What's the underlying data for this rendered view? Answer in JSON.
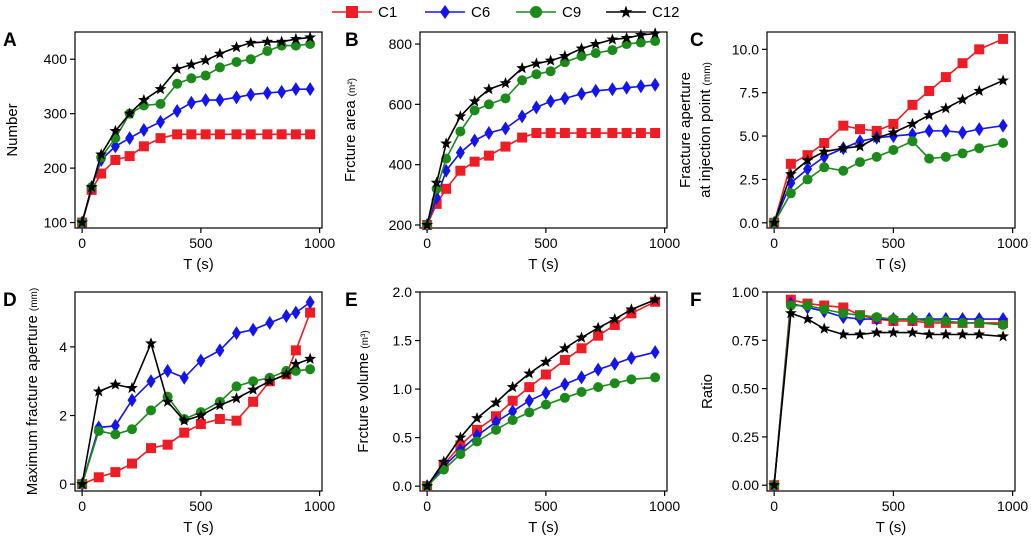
{
  "legend": [
    {
      "name": "C1",
      "color": "#ee1c24",
      "marker": "square"
    },
    {
      "name": "C6",
      "color": "#1414ee",
      "marker": "diamond"
    },
    {
      "name": "C9",
      "color": "#1b8a1b",
      "marker": "circle"
    },
    {
      "name": "C12",
      "color": "#000000",
      "marker": "star"
    }
  ],
  "chart_data": [
    {
      "panel": "A",
      "type": "line",
      "xlabel": "T (s)",
      "ylabel": "Number",
      "xlim": [
        -30,
        1010
      ],
      "ylim": [
        90,
        450
      ],
      "xticks": [
        0,
        500,
        1000
      ],
      "yticks": [
        100,
        200,
        300,
        400
      ],
      "series": [
        {
          "name": "C1",
          "x": [
            0,
            40,
            80,
            140,
            200,
            260,
            330,
            400,
            460,
            520,
            580,
            650,
            710,
            780,
            840,
            900,
            960
          ],
          "values": [
            100,
            160,
            190,
            215,
            222,
            240,
            255,
            262,
            262,
            262,
            262,
            262,
            262,
            262,
            262,
            262,
            262
          ]
        },
        {
          "name": "C6",
          "x": [
            0,
            40,
            80,
            140,
            200,
            260,
            330,
            400,
            460,
            520,
            580,
            650,
            710,
            780,
            840,
            900,
            960
          ],
          "values": [
            100,
            165,
            215,
            240,
            255,
            270,
            285,
            305,
            320,
            325,
            325,
            330,
            335,
            338,
            340,
            345,
            345
          ]
        },
        {
          "name": "C9",
          "x": [
            0,
            40,
            80,
            140,
            200,
            260,
            330,
            400,
            460,
            520,
            580,
            650,
            710,
            780,
            840,
            900,
            960
          ],
          "values": [
            100,
            165,
            220,
            255,
            300,
            315,
            318,
            355,
            365,
            370,
            385,
            395,
            400,
            415,
            425,
            425,
            428
          ]
        },
        {
          "name": "C12",
          "x": [
            0,
            40,
            80,
            140,
            200,
            260,
            330,
            400,
            460,
            520,
            580,
            650,
            710,
            780,
            840,
            900,
            960
          ],
          "values": [
            100,
            165,
            225,
            268,
            300,
            325,
            345,
            382,
            390,
            398,
            410,
            422,
            430,
            432,
            432,
            437,
            440
          ]
        }
      ]
    },
    {
      "panel": "B",
      "type": "line",
      "xlabel": "T (s)",
      "ylabel": "Frcture area",
      "ylabel_unit": "(m²)",
      "xlim": [
        -30,
        1010
      ],
      "ylim": [
        190,
        840
      ],
      "xticks": [
        0,
        500,
        1000
      ],
      "yticks": [
        200,
        400,
        600,
        800
      ],
      "series": [
        {
          "name": "C1",
          "x": [
            0,
            40,
            80,
            140,
            200,
            260,
            330,
            400,
            460,
            520,
            580,
            650,
            710,
            780,
            840,
            900,
            960
          ],
          "values": [
            200,
            270,
            320,
            380,
            410,
            430,
            460,
            490,
            505,
            505,
            505,
            505,
            505,
            505,
            505,
            505,
            505
          ]
        },
        {
          "name": "C6",
          "x": [
            0,
            40,
            80,
            140,
            200,
            260,
            330,
            400,
            460,
            520,
            580,
            650,
            710,
            780,
            840,
            900,
            960
          ],
          "values": [
            200,
            290,
            380,
            440,
            480,
            505,
            520,
            560,
            590,
            610,
            620,
            635,
            645,
            650,
            655,
            660,
            665
          ]
        },
        {
          "name": "C9",
          "x": [
            0,
            40,
            80,
            140,
            200,
            260,
            330,
            400,
            460,
            520,
            580,
            650,
            710,
            780,
            840,
            900,
            960
          ],
          "values": [
            200,
            320,
            420,
            510,
            580,
            600,
            620,
            680,
            700,
            710,
            740,
            760,
            770,
            780,
            800,
            805,
            810
          ]
        },
        {
          "name": "C12",
          "x": [
            0,
            40,
            80,
            140,
            200,
            260,
            330,
            400,
            460,
            520,
            580,
            650,
            710,
            780,
            840,
            900,
            960
          ],
          "values": [
            200,
            340,
            470,
            560,
            610,
            650,
            670,
            720,
            735,
            745,
            760,
            785,
            800,
            815,
            820,
            830,
            835
          ]
        }
      ]
    },
    {
      "panel": "C",
      "type": "line",
      "xlabel": "T (s)",
      "ylabel": "Fracture aperture",
      "ylabel2": "at injection point",
      "ylabel_unit": "(mm)",
      "xlim": [
        -30,
        1010
      ],
      "ylim": [
        -0.3,
        11
      ],
      "xticks": [
        0,
        500,
        1000
      ],
      "yticks": [
        0.0,
        2.5,
        5.0,
        7.5,
        10.0
      ],
      "ytick_labels": [
        "0.0",
        "2.5",
        "5.0",
        "7.5",
        "10.0"
      ],
      "series": [
        {
          "name": "C1",
          "x": [
            0,
            70,
            140,
            210,
            290,
            360,
            430,
            500,
            580,
            650,
            720,
            790,
            860,
            960
          ],
          "values": [
            0,
            3.4,
            3.9,
            4.6,
            5.6,
            5.4,
            5.3,
            5.7,
            6.8,
            7.6,
            8.4,
            9.2,
            10.0,
            10.6
          ]
        },
        {
          "name": "C6",
          "x": [
            0,
            70,
            140,
            210,
            290,
            360,
            430,
            500,
            580,
            650,
            720,
            790,
            860,
            960
          ],
          "values": [
            0,
            2.3,
            3.1,
            3.8,
            4.3,
            4.7,
            4.9,
            5.0,
            5.1,
            5.3,
            5.3,
            5.2,
            5.4,
            5.6
          ]
        },
        {
          "name": "C9",
          "x": [
            0,
            70,
            140,
            210,
            290,
            360,
            430,
            500,
            580,
            650,
            720,
            790,
            860,
            960
          ],
          "values": [
            0,
            1.7,
            2.5,
            3.2,
            3.0,
            3.5,
            3.8,
            4.2,
            4.7,
            3.7,
            3.8,
            4.0,
            4.3,
            4.6
          ]
        },
        {
          "name": "C12",
          "x": [
            0,
            70,
            140,
            210,
            290,
            360,
            430,
            500,
            580,
            650,
            720,
            790,
            860,
            960
          ],
          "values": [
            0,
            2.8,
            3.6,
            4.1,
            4.3,
            4.4,
            4.9,
            5.2,
            5.7,
            6.2,
            6.6,
            7.1,
            7.6,
            8.2
          ]
        }
      ]
    },
    {
      "panel": "D",
      "type": "line",
      "xlabel": "T (s)",
      "ylabel": "Maximum fracture aperture",
      "ylabel_unit": "(mm)",
      "xlim": [
        -30,
        1010
      ],
      "ylim": [
        -0.2,
        5.6
      ],
      "xticks": [
        0,
        500,
        1000
      ],
      "yticks": [
        0,
        2,
        4
      ],
      "series": [
        {
          "name": "C1",
          "x": [
            0,
            70,
            140,
            210,
            290,
            360,
            430,
            500,
            580,
            650,
            720,
            790,
            860,
            900,
            960
          ],
          "values": [
            0,
            0.2,
            0.35,
            0.6,
            1.05,
            1.15,
            1.5,
            1.75,
            1.9,
            1.85,
            2.4,
            3.0,
            3.2,
            3.9,
            5.0
          ]
        },
        {
          "name": "C6",
          "x": [
            0,
            70,
            140,
            210,
            290,
            360,
            430,
            500,
            580,
            650,
            720,
            790,
            860,
            900,
            960
          ],
          "values": [
            0,
            1.65,
            1.7,
            2.45,
            3.0,
            3.3,
            3.1,
            3.6,
            3.9,
            4.4,
            4.5,
            4.7,
            4.9,
            5.0,
            5.3
          ]
        },
        {
          "name": "C9",
          "x": [
            0,
            70,
            140,
            210,
            290,
            360,
            430,
            500,
            580,
            650,
            720,
            790,
            860,
            900,
            960
          ],
          "values": [
            0,
            1.55,
            1.45,
            1.6,
            2.15,
            2.55,
            1.9,
            2.1,
            2.4,
            2.85,
            3.0,
            3.1,
            3.3,
            3.3,
            3.35
          ]
        },
        {
          "name": "C12",
          "x": [
            0,
            70,
            140,
            210,
            290,
            360,
            430,
            500,
            580,
            650,
            720,
            790,
            860,
            900,
            960
          ],
          "values": [
            0,
            2.7,
            2.9,
            2.8,
            4.1,
            2.4,
            1.85,
            2.0,
            2.3,
            2.5,
            2.75,
            3.0,
            3.2,
            3.5,
            3.65
          ]
        }
      ]
    },
    {
      "panel": "E",
      "type": "line",
      "xlabel": "T (s)",
      "ylabel": "Frcture volume",
      "ylabel_unit": "(m³)",
      "xlim": [
        -30,
        1010
      ],
      "ylim": [
        -0.05,
        2.0
      ],
      "xticks": [
        0,
        500,
        1000
      ],
      "yticks": [
        0.0,
        0.5,
        1.0,
        1.5,
        2.0
      ],
      "ytick_labels": [
        "0.0",
        "0.5",
        "1.0",
        "1.5",
        "2.0"
      ],
      "series": [
        {
          "name": "C1",
          "x": [
            0,
            70,
            140,
            210,
            290,
            360,
            430,
            500,
            580,
            650,
            720,
            790,
            860,
            960
          ],
          "values": [
            0,
            0.22,
            0.42,
            0.58,
            0.72,
            0.88,
            1.02,
            1.15,
            1.3,
            1.42,
            1.55,
            1.66,
            1.78,
            1.9
          ]
        },
        {
          "name": "C6",
          "x": [
            0,
            70,
            140,
            210,
            290,
            360,
            430,
            500,
            580,
            650,
            720,
            790,
            860,
            960
          ],
          "values": [
            0,
            0.2,
            0.37,
            0.52,
            0.66,
            0.77,
            0.88,
            0.96,
            1.05,
            1.12,
            1.2,
            1.26,
            1.32,
            1.38
          ]
        },
        {
          "name": "C9",
          "x": [
            0,
            70,
            140,
            210,
            290,
            360,
            430,
            500,
            580,
            650,
            720,
            790,
            860,
            960
          ],
          "values": [
            0,
            0.17,
            0.33,
            0.46,
            0.58,
            0.68,
            0.76,
            0.84,
            0.91,
            0.97,
            1.02,
            1.06,
            1.1,
            1.12
          ]
        },
        {
          "name": "C12",
          "x": [
            0,
            70,
            140,
            210,
            290,
            360,
            430,
            500,
            580,
            650,
            720,
            790,
            860,
            960
          ],
          "values": [
            0,
            0.25,
            0.5,
            0.7,
            0.86,
            1.02,
            1.16,
            1.28,
            1.42,
            1.53,
            1.63,
            1.72,
            1.82,
            1.92
          ]
        }
      ]
    },
    {
      "panel": "F",
      "type": "line",
      "xlabel": "T (s)",
      "ylabel": "Ratio",
      "xlim": [
        -30,
        1010
      ],
      "ylim": [
        -0.03,
        1.0
      ],
      "xticks": [
        0,
        500,
        1000
      ],
      "yticks": [
        0.0,
        0.25,
        0.5,
        0.75,
        1.0
      ],
      "ytick_labels": [
        "0.00",
        "0.25",
        "0.50",
        "0.75",
        "1.00"
      ],
      "series": [
        {
          "name": "C1",
          "x": [
            0,
            70,
            140,
            210,
            290,
            360,
            430,
            500,
            580,
            650,
            720,
            790,
            860,
            960
          ],
          "values": [
            0,
            0.96,
            0.94,
            0.93,
            0.92,
            0.88,
            0.86,
            0.85,
            0.85,
            0.84,
            0.84,
            0.84,
            0.84,
            0.84
          ]
        },
        {
          "name": "C6",
          "x": [
            0,
            70,
            140,
            210,
            290,
            360,
            430,
            500,
            580,
            650,
            720,
            790,
            860,
            960
          ],
          "values": [
            0,
            0.94,
            0.92,
            0.9,
            0.87,
            0.86,
            0.86,
            0.86,
            0.86,
            0.86,
            0.86,
            0.86,
            0.86,
            0.86
          ]
        },
        {
          "name": "C9",
          "x": [
            0,
            70,
            140,
            210,
            290,
            360,
            430,
            500,
            580,
            650,
            720,
            790,
            860,
            960
          ],
          "values": [
            0,
            0.93,
            0.93,
            0.91,
            0.89,
            0.88,
            0.87,
            0.86,
            0.86,
            0.85,
            0.85,
            0.84,
            0.84,
            0.83
          ]
        },
        {
          "name": "C12",
          "x": [
            0,
            70,
            140,
            210,
            290,
            360,
            430,
            500,
            580,
            650,
            720,
            790,
            860,
            960
          ],
          "values": [
            0,
            0.89,
            0.86,
            0.81,
            0.78,
            0.78,
            0.79,
            0.79,
            0.79,
            0.78,
            0.78,
            0.78,
            0.78,
            0.77
          ]
        }
      ]
    }
  ]
}
